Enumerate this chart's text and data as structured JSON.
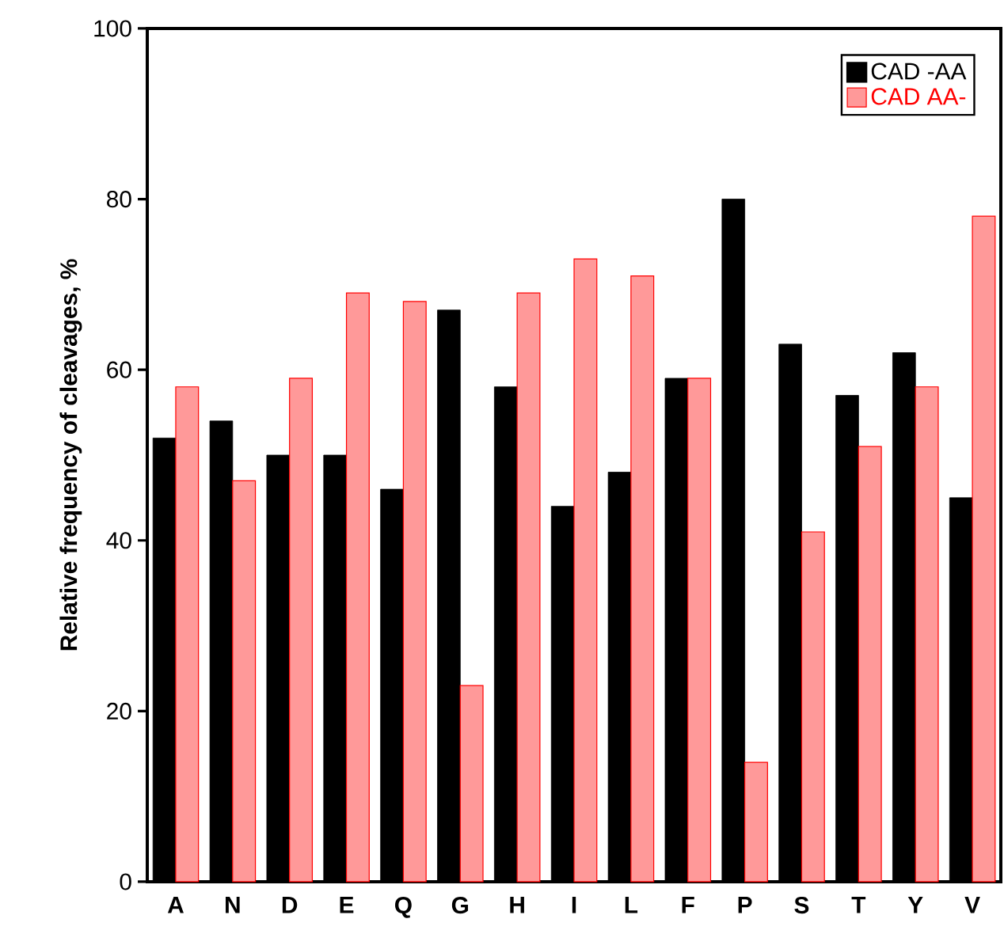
{
  "chart_data": {
    "type": "bar",
    "ylabel": "Relative frequency of cleavages, %",
    "categories": [
      "A",
      "N",
      "D",
      "E",
      "Q",
      "G",
      "H",
      "I",
      "L",
      "F",
      "P",
      "S",
      "T",
      "Y",
      "V"
    ],
    "series": [
      {
        "name": "CAD -AA",
        "color": "#000000",
        "values": [
          52,
          54,
          50,
          50,
          46,
          67,
          58,
          44,
          48,
          59,
          80,
          63,
          57,
          62,
          45
        ]
      },
      {
        "name": "CAD AA-",
        "color": "#ff0000",
        "values": [
          58,
          47,
          59,
          69,
          68,
          23,
          69,
          73,
          71,
          59,
          14,
          41,
          51,
          58,
          78
        ]
      }
    ],
    "ylim": [
      0,
      100
    ],
    "yticks": [
      0,
      20,
      40,
      60,
      80,
      100
    ],
    "legend": "top right"
  }
}
